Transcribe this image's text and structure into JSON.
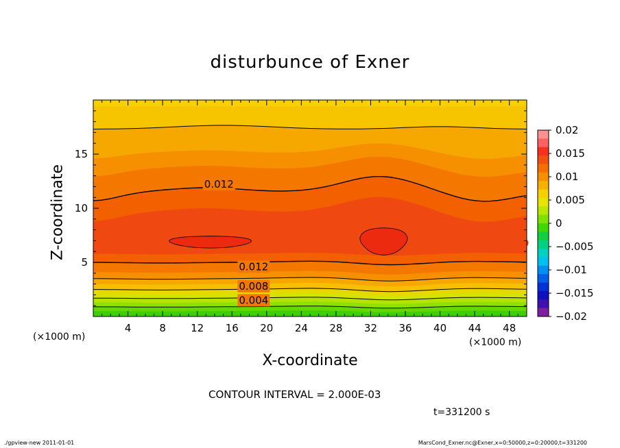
{
  "chart_data": {
    "type": "heatmap",
    "subtype": "filled-contour",
    "title": "disturbunce of Exner",
    "xlabel": "X-coordinate",
    "ylabel": "Z-coordinate",
    "x_unit": "(×1000 m)",
    "xlim": [
      0,
      50
    ],
    "ylim": [
      0,
      20
    ],
    "x_ticks": [
      4,
      8,
      12,
      16,
      20,
      24,
      28,
      32,
      36,
      40,
      44,
      48
    ],
    "y_ticks": [
      5,
      10,
      15
    ],
    "colorbar": {
      "labels": [
        "0.02",
        "0.015",
        "0.01",
        "0.005",
        "0",
        "−0.005",
        "−0.01",
        "−0.015",
        "−0.02"
      ],
      "values": [
        0.02,
        0.015,
        0.01,
        0.005,
        0,
        -0.005,
        -0.01,
        -0.015,
        -0.02
      ],
      "range": [
        -0.02,
        0.02
      ]
    },
    "contour_labels": [
      {
        "text": "0.012",
        "x": 14.5,
        "z": 12.2
      },
      {
        "text": "0.012",
        "x": 18.5,
        "z": 4.6
      },
      {
        "text": "0.008",
        "x": 18.5,
        "z": 2.8
      },
      {
        "text": "0.004",
        "x": 18.5,
        "z": 1.5
      }
    ],
    "contour_interval": "CONTOUR INTERVAL = 2.000E-03",
    "time": "t=331200 s",
    "legend": "right colorbar",
    "grid": false
  },
  "footer": {
    "left": "./gpview-new   2011-01-01",
    "right": "MarsCond_Exner.nc@Exner,x=0:50000,z=0:20000,t=331200"
  }
}
